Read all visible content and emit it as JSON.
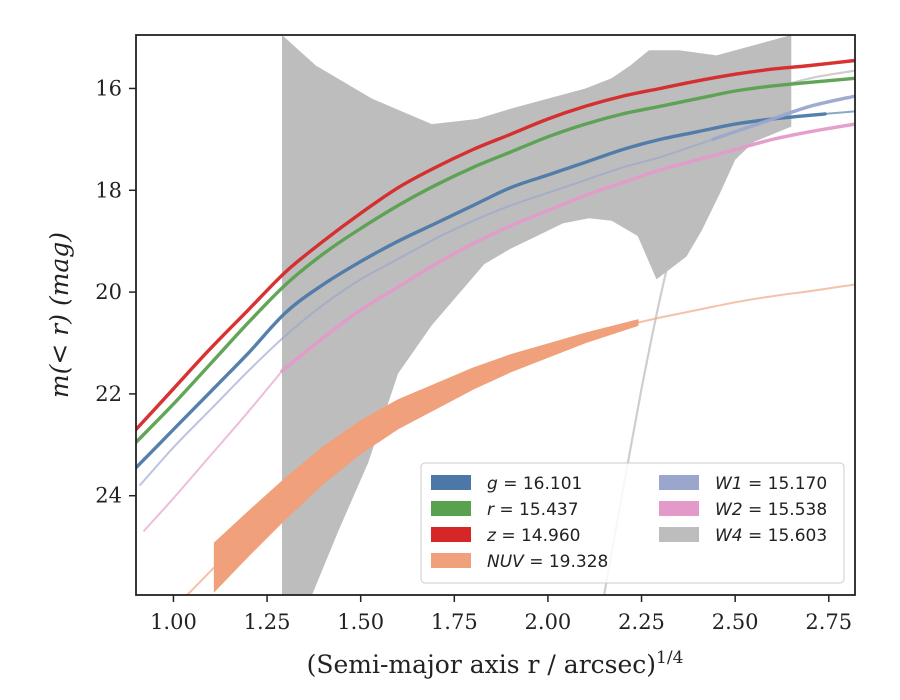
{
  "chart_data": {
    "type": "line",
    "xlabel": "(Semi-major axis r / arcsec)",
    "xlabel_sup": "1/4",
    "ylabel": "m(< r) (mag)",
    "xlim": [
      0.9,
      2.82
    ],
    "ylim": [
      25.95,
      14.95
    ],
    "y_inverted": true,
    "x_ticks": [
      1.0,
      1.25,
      1.5,
      1.75,
      2.0,
      2.25,
      2.5,
      2.75
    ],
    "x_tick_labels": [
      "1.00",
      "1.25",
      "1.50",
      "1.75",
      "2.00",
      "2.25",
      "2.50",
      "2.75"
    ],
    "y_ticks": [
      16,
      18,
      20,
      22,
      24
    ],
    "y_tick_labels": [
      "16",
      "18",
      "20",
      "22",
      "24"
    ],
    "legend_position": "lower-right",
    "legend_columns": 2,
    "series": [
      {
        "name": "g = 16.101",
        "color": "#4c78a8",
        "band_points": [
          [
            0.9,
            23.45
          ],
          [
            1.0,
            22.7
          ],
          [
            1.1,
            21.95
          ],
          [
            1.2,
            21.2
          ],
          [
            1.3,
            20.4
          ],
          [
            1.4,
            19.85
          ],
          [
            1.5,
            19.4
          ],
          [
            1.6,
            19.0
          ],
          [
            1.7,
            18.65
          ],
          [
            1.8,
            18.3
          ],
          [
            1.9,
            17.95
          ],
          [
            2.0,
            17.7
          ],
          [
            2.1,
            17.45
          ],
          [
            2.2,
            17.2
          ],
          [
            2.3,
            17.0
          ],
          [
            2.4,
            16.85
          ],
          [
            2.5,
            16.7
          ],
          [
            2.6,
            16.6
          ],
          [
            2.74,
            16.5
          ]
        ],
        "faint_points": [
          [
            2.74,
            16.5
          ],
          [
            2.82,
            16.45
          ]
        ]
      },
      {
        "name": "r = 15.437",
        "color": "#59a14f",
        "band_points": [
          [
            0.9,
            22.95
          ],
          [
            1.0,
            22.2
          ],
          [
            1.1,
            21.4
          ],
          [
            1.2,
            20.6
          ],
          [
            1.3,
            19.85
          ],
          [
            1.4,
            19.25
          ],
          [
            1.5,
            18.75
          ],
          [
            1.6,
            18.3
          ],
          [
            1.7,
            17.9
          ],
          [
            1.8,
            17.55
          ],
          [
            1.9,
            17.25
          ],
          [
            2.0,
            16.95
          ],
          [
            2.1,
            16.7
          ],
          [
            2.2,
            16.5
          ],
          [
            2.3,
            16.35
          ],
          [
            2.4,
            16.2
          ],
          [
            2.5,
            16.05
          ],
          [
            2.6,
            15.95
          ],
          [
            2.7,
            15.88
          ],
          [
            2.82,
            15.8
          ]
        ],
        "faint_points": []
      },
      {
        "name": "z = 14.960",
        "color": "#d62728",
        "band_points": [
          [
            0.9,
            22.7
          ],
          [
            1.0,
            21.9
          ],
          [
            1.1,
            21.1
          ],
          [
            1.2,
            20.35
          ],
          [
            1.3,
            19.6
          ],
          [
            1.4,
            19.0
          ],
          [
            1.5,
            18.45
          ],
          [
            1.6,
            17.95
          ],
          [
            1.7,
            17.55
          ],
          [
            1.8,
            17.2
          ],
          [
            1.9,
            16.9
          ],
          [
            2.0,
            16.6
          ],
          [
            2.1,
            16.35
          ],
          [
            2.2,
            16.15
          ],
          [
            2.3,
            16.0
          ],
          [
            2.4,
            15.85
          ],
          [
            2.5,
            15.72
          ],
          [
            2.6,
            15.62
          ],
          [
            2.7,
            15.55
          ],
          [
            2.82,
            15.45
          ]
        ],
        "faint_points": []
      },
      {
        "name": "NUV = 19.328",
        "color": "#f0a07a",
        "band_points": [
          [
            1.11,
            25.4
          ],
          [
            1.2,
            24.75
          ],
          [
            1.3,
            24.05
          ],
          [
            1.4,
            23.4
          ],
          [
            1.5,
            22.85
          ],
          [
            1.6,
            22.4
          ],
          [
            1.7,
            22.05
          ],
          [
            1.8,
            21.7
          ],
          [
            1.9,
            21.4
          ],
          [
            2.0,
            21.15
          ],
          [
            2.1,
            20.9
          ],
          [
            2.24,
            20.6
          ]
        ],
        "band_width": 0.42,
        "faint_points": [
          [
            0.95,
            26.5
          ],
          [
            1.0,
            26.2
          ],
          [
            1.05,
            25.85
          ],
          [
            1.11,
            25.4
          ],
          [
            2.24,
            20.6
          ],
          [
            2.3,
            20.5
          ],
          [
            2.4,
            20.35
          ],
          [
            2.5,
            20.2
          ],
          [
            2.6,
            20.08
          ],
          [
            2.7,
            19.98
          ],
          [
            2.82,
            19.85
          ]
        ]
      },
      {
        "name": "W1 = 15.170",
        "color": "#9aa6cc",
        "band_points": [
          [
            2.44,
            17.0
          ],
          [
            2.5,
            16.85
          ],
          [
            2.6,
            16.6
          ],
          [
            2.7,
            16.35
          ],
          [
            2.82,
            16.15
          ]
        ],
        "faint_points": [
          [
            0.91,
            23.8
          ],
          [
            1.0,
            23.05
          ],
          [
            1.1,
            22.3
          ],
          [
            1.2,
            21.55
          ],
          [
            1.3,
            20.85
          ],
          [
            1.4,
            20.25
          ],
          [
            1.5,
            19.75
          ],
          [
            1.6,
            19.35
          ],
          [
            1.7,
            18.95
          ],
          [
            1.8,
            18.6
          ],
          [
            1.9,
            18.3
          ],
          [
            2.0,
            18.05
          ],
          [
            2.1,
            17.8
          ],
          [
            2.2,
            17.55
          ],
          [
            2.3,
            17.35
          ],
          [
            2.44,
            17.0
          ]
        ]
      },
      {
        "name": "W2 = 15.538",
        "color": "#e39ac9",
        "band_points": [
          [
            1.29,
            21.55
          ],
          [
            1.4,
            20.9
          ],
          [
            1.5,
            20.35
          ],
          [
            1.6,
            19.9
          ],
          [
            1.7,
            19.45
          ],
          [
            1.8,
            19.05
          ],
          [
            1.9,
            18.7
          ],
          [
            2.0,
            18.4
          ],
          [
            2.1,
            18.1
          ],
          [
            2.2,
            17.85
          ],
          [
            2.3,
            17.6
          ],
          [
            2.4,
            17.4
          ],
          [
            2.5,
            17.2
          ],
          [
            2.6,
            17.0
          ],
          [
            2.7,
            16.85
          ],
          [
            2.82,
            16.7
          ]
        ],
        "faint_points": [
          [
            0.92,
            24.7
          ],
          [
            1.0,
            24.05
          ],
          [
            1.1,
            23.2
          ],
          [
            1.2,
            22.35
          ],
          [
            1.29,
            21.55
          ]
        ]
      },
      {
        "name": "W4 = 15.603",
        "color": "#bdbdbd",
        "band_points": [],
        "faint_points": [
          [
            2.15,
            25.95
          ],
          [
            2.2,
            23.9
          ],
          [
            2.25,
            21.9
          ],
          [
            2.3,
            20.1
          ],
          [
            2.35,
            18.6
          ],
          [
            2.4,
            17.5
          ],
          [
            2.45,
            16.9
          ],
          [
            2.5,
            16.55
          ],
          [
            2.55,
            16.25
          ],
          [
            2.6,
            16.02
          ],
          [
            2.7,
            15.8
          ],
          [
            2.82,
            15.65
          ]
        ],
        "shaded_region": {
          "upper": [
            [
              1.29,
              14.95
            ],
            [
              1.38,
              15.55
            ],
            [
              1.53,
              16.2
            ],
            [
              1.69,
              16.7
            ],
            [
              1.81,
              16.6
            ],
            [
              1.9,
              16.4
            ],
            [
              2.0,
              16.2
            ],
            [
              2.1,
              16.0
            ],
            [
              2.17,
              15.8
            ],
            [
              2.22,
              15.55
            ],
            [
              2.27,
              15.25
            ],
            [
              2.35,
              15.25
            ],
            [
              2.45,
              15.35
            ],
            [
              2.55,
              15.15
            ],
            [
              2.65,
              14.95
            ]
          ],
          "lower": [
            [
              2.65,
              16.75
            ],
            [
              2.6,
              16.9
            ],
            [
              2.55,
              17.05
            ],
            [
              2.5,
              17.4
            ],
            [
              2.46,
              18.05
            ],
            [
              2.41,
              18.8
            ],
            [
              2.37,
              19.3
            ],
            [
              2.29,
              19.75
            ],
            [
              2.24,
              18.9
            ],
            [
              2.17,
              18.6
            ],
            [
              2.11,
              18.55
            ],
            [
              2.04,
              18.65
            ],
            [
              1.97,
              18.9
            ],
            [
              1.9,
              19.15
            ],
            [
              1.83,
              19.45
            ],
            [
              1.69,
              20.65
            ],
            [
              1.6,
              21.6
            ],
            [
              1.52,
              23.35
            ],
            [
              1.44,
              24.7
            ],
            [
              1.37,
              25.95
            ],
            [
              1.29,
              25.95
            ]
          ]
        }
      }
    ]
  }
}
